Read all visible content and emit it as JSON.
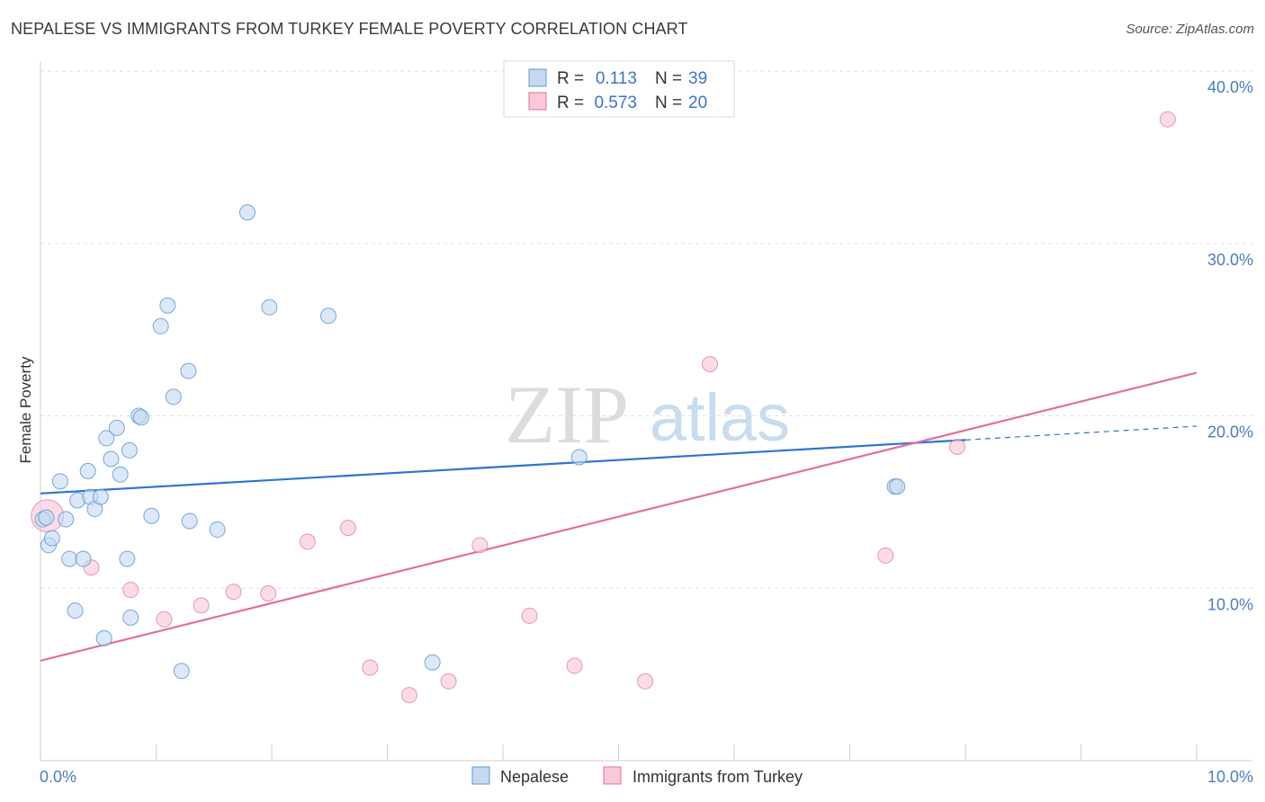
{
  "title": "NEPALESE VS IMMIGRANTS FROM TURKEY FEMALE POVERTY CORRELATION CHART",
  "source": "Source: ZipAtlas.com",
  "watermark": {
    "zip": "ZIP",
    "atlas": "atlas"
  },
  "colors": {
    "blue": "#5b9bd5",
    "blue_fill": "#c5d9f1",
    "blue_line": "#2f73d0",
    "pink": "#e07098",
    "pink_fill": "#f9c9d8",
    "pink_line": "#e0709a"
  },
  "legend": {
    "rows": [
      {
        "r_label": "R =",
        "r_value": "0.113",
        "n_label": "N =",
        "n_value": "39"
      },
      {
        "r_label": "R =",
        "r_value": "0.573",
        "n_label": "N =",
        "n_value": "20"
      }
    ]
  },
  "bottom_legend": {
    "series1": "Nepalese",
    "series2": "Immigrants from Turkey"
  },
  "chart_data": {
    "type": "scatter",
    "title": "NEPALESE VS IMMIGRANTS FROM TURKEY FEMALE POVERTY CORRELATION CHART",
    "xlabel": "",
    "ylabel": "Female Poverty",
    "xlim": [
      0,
      10
    ],
    "ylim": [
      0,
      40
    ],
    "x_tick_labels": [
      "0.0%",
      "10.0%"
    ],
    "y_tick_labels": [
      "10.0%",
      "20.0%",
      "30.0%",
      "40.0%"
    ],
    "y_ticks": [
      10,
      20,
      30,
      40
    ],
    "series": [
      {
        "name": "Nepalese",
        "R": 0.113,
        "N": 39,
        "points": [
          [
            0.02,
            14.0
          ],
          [
            0.07,
            12.5
          ],
          [
            0.1,
            12.9
          ],
          [
            0.17,
            16.2
          ],
          [
            0.22,
            14.0
          ],
          [
            0.25,
            11.7
          ],
          [
            0.3,
            8.7
          ],
          [
            0.32,
            15.1
          ],
          [
            0.37,
            11.7
          ],
          [
            0.41,
            16.8
          ],
          [
            0.43,
            15.3
          ],
          [
            0.47,
            14.6
          ],
          [
            0.52,
            15.3
          ],
          [
            0.55,
            7.1
          ],
          [
            0.57,
            18.7
          ],
          [
            0.61,
            17.5
          ],
          [
            0.66,
            19.3
          ],
          [
            0.69,
            16.6
          ],
          [
            0.75,
            11.7
          ],
          [
            0.77,
            18.0
          ],
          [
            0.78,
            8.3
          ],
          [
            0.85,
            20.0
          ],
          [
            0.87,
            19.9
          ],
          [
            0.96,
            14.2
          ],
          [
            1.04,
            25.2
          ],
          [
            1.1,
            26.4
          ],
          [
            1.15,
            21.1
          ],
          [
            1.22,
            5.2
          ],
          [
            1.28,
            22.6
          ],
          [
            1.29,
            13.9
          ],
          [
            1.53,
            13.4
          ],
          [
            1.79,
            31.8
          ],
          [
            1.98,
            26.3
          ],
          [
            2.49,
            25.8
          ],
          [
            3.39,
            5.7
          ],
          [
            4.66,
            17.6
          ],
          [
            7.39,
            15.9
          ],
          [
            7.41,
            15.9
          ],
          [
            0.05,
            14.1
          ]
        ],
        "trend": {
          "x0": 0,
          "y0": 15.5,
          "x1": 8.0,
          "y1": 18.6,
          "dash_x1": 10.0,
          "dash_y1": 19.4
        }
      },
      {
        "name": "Immigrants from Turkey",
        "R": 0.573,
        "N": 20,
        "points": [
          [
            0.06,
            14.2
          ],
          [
            0.44,
            11.2
          ],
          [
            0.78,
            9.9
          ],
          [
            1.07,
            8.2
          ],
          [
            1.39,
            9.0
          ],
          [
            1.67,
            9.8
          ],
          [
            1.97,
            9.7
          ],
          [
            2.31,
            12.7
          ],
          [
            2.66,
            13.5
          ],
          [
            2.85,
            5.4
          ],
          [
            3.19,
            3.8
          ],
          [
            3.53,
            4.6
          ],
          [
            3.8,
            12.5
          ],
          [
            4.23,
            8.4
          ],
          [
            4.62,
            5.5
          ],
          [
            5.23,
            4.6
          ],
          [
            5.79,
            23.0
          ],
          [
            7.31,
            11.9
          ],
          [
            7.93,
            18.2
          ],
          [
            9.75,
            37.2
          ]
        ],
        "trend": {
          "x0": 0,
          "y0": 5.8,
          "x1": 10.0,
          "y1": 22.5
        }
      }
    ]
  }
}
